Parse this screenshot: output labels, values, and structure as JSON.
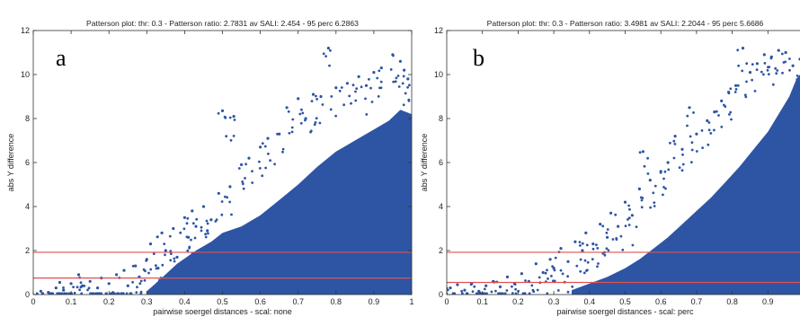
{
  "colors": {
    "points": "#2d55a4",
    "threshold_lines": "#e05050",
    "axes": "#333333"
  },
  "chart_data": [
    {
      "type": "scatter",
      "panel_label": "a",
      "title": "Patterson plot: thr: 0.3 - Patterson ratio: 2.7831 av SALI: 2.454 - 95 perc 6.2863",
      "xlabel": "pairwise soergel distances - scal: none",
      "ylabel": "abs Y difference",
      "xlim": [
        0,
        1
      ],
      "ylim": [
        0,
        12
      ],
      "xticks": [
        "0",
        "0.1",
        "0.2",
        "0.3",
        "0.4",
        "0.5",
        "0.6",
        "0.7",
        "0.8",
        "0.9",
        "1"
      ],
      "yticks": [
        "0",
        "2",
        "4",
        "6",
        "8",
        "10",
        "12"
      ],
      "hlines": [
        0.75,
        1.92
      ],
      "grid": false,
      "outline_points": [
        [
          0.02,
          0.15
        ],
        [
          0.04,
          0.1
        ],
        [
          0.06,
          0.3
        ],
        [
          0.07,
          0.55
        ],
        [
          0.08,
          0.2
        ],
        [
          0.1,
          0.5
        ],
        [
          0.12,
          0.9
        ],
        [
          0.13,
          0.4
        ],
        [
          0.15,
          0.6
        ],
        [
          0.17,
          0.3
        ],
        [
          0.18,
          0.75
        ],
        [
          0.2,
          0.5
        ],
        [
          0.22,
          0.9
        ],
        [
          0.24,
          1.1
        ],
        [
          0.25,
          0.4
        ],
        [
          0.27,
          1.3
        ],
        [
          0.28,
          0.8
        ],
        [
          0.3,
          1.6
        ],
        [
          0.31,
          2.3
        ],
        [
          0.33,
          1.2
        ],
        [
          0.34,
          2.8
        ],
        [
          0.35,
          2.0
        ],
        [
          0.37,
          3.0
        ],
        [
          0.38,
          1.7
        ],
        [
          0.4,
          3.5
        ],
        [
          0.41,
          2.6
        ],
        [
          0.42,
          3.8
        ],
        [
          0.43,
          3.1
        ],
        [
          0.45,
          4.0
        ],
        [
          0.46,
          2.9
        ],
        [
          0.47,
          3.4
        ],
        [
          0.49,
          4.6
        ],
        [
          0.5,
          8.35
        ],
        [
          0.52,
          4.9
        ],
        [
          0.53,
          8.1
        ],
        [
          0.55,
          5.9
        ],
        [
          0.57,
          6.2
        ],
        [
          0.6,
          6.7
        ],
        [
          0.62,
          7.1
        ],
        [
          0.65,
          7.3
        ],
        [
          0.67,
          8.5
        ],
        [
          0.7,
          8.9
        ],
        [
          0.72,
          8.0
        ],
        [
          0.74,
          9.1
        ],
        [
          0.76,
          9.0
        ],
        [
          0.78,
          11.2
        ],
        [
          0.8,
          9.4
        ],
        [
          0.83,
          9.6
        ],
        [
          0.86,
          9.9
        ],
        [
          0.88,
          9.5
        ],
        [
          0.9,
          10.1
        ],
        [
          0.92,
          10.3
        ],
        [
          0.95,
          10.9
        ],
        [
          0.97,
          10.6
        ],
        [
          0.98,
          10.2
        ],
        [
          0.99,
          9.8
        ]
      ],
      "dense_region": [
        [
          0.3,
          0
        ],
        [
          0.5,
          0
        ],
        [
          0.7,
          0
        ],
        [
          0.9,
          0
        ],
        [
          1,
          0
        ],
        [
          1,
          8.2
        ],
        [
          0.97,
          8.4
        ],
        [
          0.94,
          7.9
        ],
        [
          0.9,
          7.5
        ],
        [
          0.85,
          7.0
        ],
        [
          0.8,
          6.5
        ],
        [
          0.75,
          5.8
        ],
        [
          0.7,
          5.0
        ],
        [
          0.65,
          4.3
        ],
        [
          0.6,
          3.6
        ],
        [
          0.55,
          3.1
        ],
        [
          0.5,
          2.8
        ],
        [
          0.47,
          2.4
        ],
        [
          0.43,
          2.0
        ],
        [
          0.38,
          1.4
        ],
        [
          0.33,
          0.6
        ],
        [
          0.3,
          0.15
        ]
      ]
    },
    {
      "type": "scatter",
      "panel_label": "b",
      "title": "Patterson plot: thr: 0.3 - Patterson ratio: 3.4981 av SALI: 2.2044 - 95 perc 5.6686",
      "xlabel": "pairwise soergel distances - scal: perc",
      "ylabel": "abs Y difference",
      "xlim": [
        0,
        1
      ],
      "ylim": [
        0,
        12
      ],
      "xticks": [
        "0",
        "0.1",
        "0.2",
        "0.3",
        "0.4",
        "0.5",
        "0.6",
        "0.7",
        "0.8",
        "0.9"
      ],
      "yticks": [
        "0",
        "2",
        "4",
        "6",
        "8",
        "10",
        "12"
      ],
      "hlines": [
        0.55,
        1.92
      ],
      "grid": false,
      "outline_points": [
        [
          0.01,
          0.3
        ],
        [
          0.03,
          0.45
        ],
        [
          0.05,
          0.2
        ],
        [
          0.07,
          0.5
        ],
        [
          0.09,
          0.15
        ],
        [
          0.11,
          0.4
        ],
        [
          0.13,
          0.6
        ],
        [
          0.15,
          0.35
        ],
        [
          0.17,
          0.8
        ],
        [
          0.19,
          0.5
        ],
        [
          0.21,
          0.95
        ],
        [
          0.23,
          0.6
        ],
        [
          0.25,
          1.4
        ],
        [
          0.27,
          1.0
        ],
        [
          0.29,
          1.6
        ],
        [
          0.3,
          1.2
        ],
        [
          0.32,
          2.1
        ],
        [
          0.34,
          1.5
        ],
        [
          0.36,
          2.4
        ],
        [
          0.38,
          2.0
        ],
        [
          0.39,
          2.8
        ],
        [
          0.41,
          2.3
        ],
        [
          0.43,
          3.2
        ],
        [
          0.45,
          2.6
        ],
        [
          0.46,
          3.7
        ],
        [
          0.48,
          3.1
        ],
        [
          0.5,
          4.2
        ],
        [
          0.52,
          3.6
        ],
        [
          0.54,
          4.8
        ],
        [
          0.55,
          6.5
        ],
        [
          0.57,
          5.2
        ],
        [
          0.6,
          5.6
        ],
        [
          0.62,
          6.0
        ],
        [
          0.64,
          7.2
        ],
        [
          0.66,
          6.6
        ],
        [
          0.68,
          8.5
        ],
        [
          0.7,
          7.3
        ],
        [
          0.73,
          7.9
        ],
        [
          0.75,
          8.3
        ],
        [
          0.77,
          8.8
        ],
        [
          0.79,
          9.2
        ],
        [
          0.81,
          9.5
        ],
        [
          0.83,
          11.2
        ],
        [
          0.85,
          10.1
        ],
        [
          0.87,
          10.5
        ],
        [
          0.89,
          10.9
        ],
        [
          0.91,
          10.8
        ],
        [
          0.93,
          11.1
        ],
        [
          0.95,
          11.0
        ],
        [
          0.97,
          10.4
        ],
        [
          0.99,
          10.7
        ]
      ],
      "dense_region": [
        [
          0.35,
          0
        ],
        [
          0.55,
          0
        ],
        [
          0.75,
          0
        ],
        [
          0.95,
          0
        ],
        [
          1,
          0
        ],
        [
          1,
          10.2
        ],
        [
          0.98,
          9.8
        ],
        [
          0.96,
          9.0
        ],
        [
          0.93,
          8.2
        ],
        [
          0.9,
          7.4
        ],
        [
          0.86,
          6.6
        ],
        [
          0.82,
          5.8
        ],
        [
          0.78,
          5.1
        ],
        [
          0.74,
          4.4
        ],
        [
          0.7,
          3.8
        ],
        [
          0.66,
          3.2
        ],
        [
          0.62,
          2.6
        ],
        [
          0.58,
          2.1
        ],
        [
          0.54,
          1.6
        ],
        [
          0.5,
          1.2
        ],
        [
          0.45,
          0.8
        ],
        [
          0.4,
          0.5
        ],
        [
          0.35,
          0.2
        ]
      ]
    }
  ]
}
